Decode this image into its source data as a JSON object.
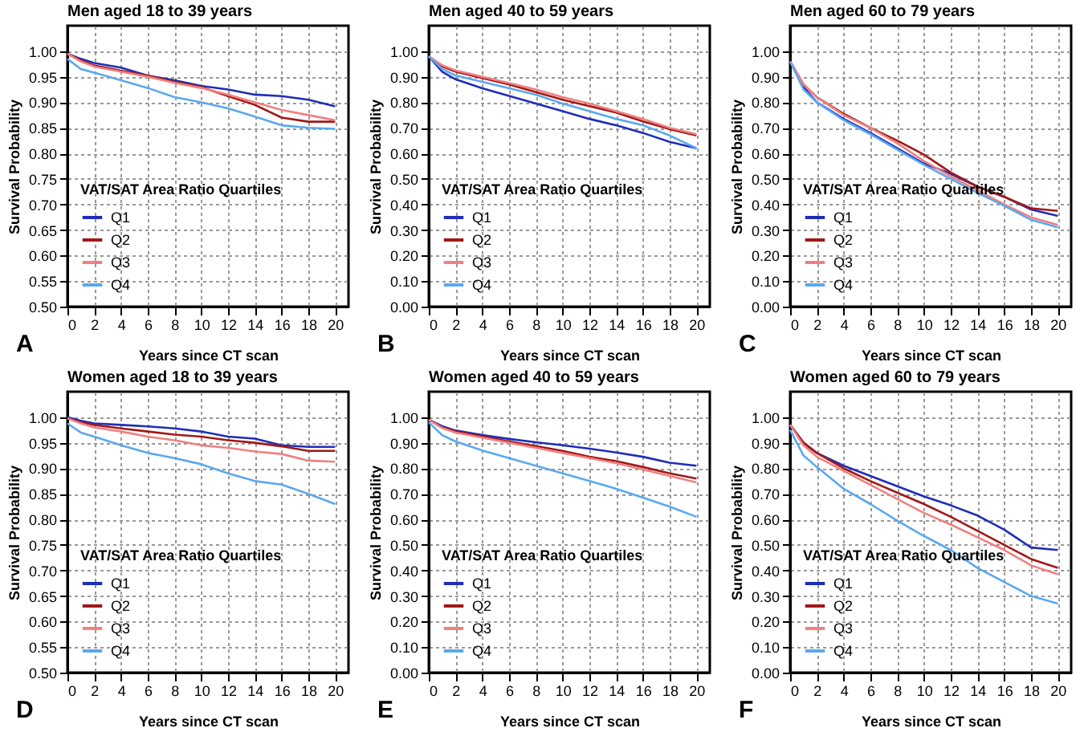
{
  "chart_data": [
    {
      "type": "line",
      "title": "Men aged 18 to 39 years",
      "xlabel": "Years since CT scan",
      "ylabel": "Survival Probability",
      "legend_title": "VAT/SAT Area Ratio Quartiles",
      "legend": "bottom left",
      "grid": true,
      "annotations": [
        "A"
      ],
      "x": [
        0,
        1,
        2,
        4,
        6,
        8,
        10,
        12,
        14,
        16,
        18,
        20
      ],
      "xlim": [
        0,
        21
      ],
      "xticks": [
        0,
        2,
        4,
        6,
        8,
        10,
        12,
        14,
        16,
        18,
        20
      ],
      "ylim": [
        0.5,
        1.05
      ],
      "yticks": [
        {
          "value": 0.5,
          "label": "0.50"
        },
        {
          "value": 0.55,
          "label": "0.55"
        },
        {
          "value": 0.6,
          "label": "0.60"
        },
        {
          "value": 0.65,
          "label": "0.65"
        },
        {
          "value": 0.7,
          "label": "0.70"
        },
        {
          "value": 0.75,
          "label": "0.75"
        },
        {
          "value": 0.8,
          "label": "0.80"
        },
        {
          "value": 0.85,
          "label": "0.85"
        },
        {
          "value": 0.9,
          "label": "0.90"
        },
        {
          "value": 0.95,
          "label": "0.95"
        },
        {
          "value": 1,
          "label": "1.00"
        }
      ],
      "series": [
        {
          "name": "Q1",
          "color": "#1f2db8",
          "values": [
            0.995,
            0.985,
            0.977,
            0.968,
            0.952,
            0.943,
            0.932,
            0.925,
            0.915,
            0.912,
            0.905,
            0.892
          ]
        },
        {
          "name": "Q2",
          "color": "#a01818",
          "values": [
            0.995,
            0.982,
            0.972,
            0.962,
            0.952,
            0.94,
            0.93,
            0.912,
            0.895,
            0.87,
            0.862,
            0.862
          ]
        },
        {
          "name": "Q3",
          "color": "#f08080",
          "values": [
            0.995,
            0.98,
            0.97,
            0.96,
            0.95,
            0.938,
            0.928,
            0.915,
            0.9,
            0.885,
            0.875,
            0.865
          ]
        },
        {
          "name": "Q4",
          "color": "#5aa8f0",
          "values": [
            0.985,
            0.965,
            0.958,
            0.943,
            0.928,
            0.91,
            0.9,
            0.888,
            0.872,
            0.855,
            0.85,
            0.848
          ]
        }
      ]
    },
    {
      "type": "line",
      "title": "Men aged 40 to 59 years",
      "xlabel": "Years since CT scan",
      "ylabel": "Survival Probability",
      "legend_title": "VAT/SAT Area Ratio Quartiles",
      "legend": "bottom left",
      "grid": true,
      "annotations": [
        "B"
      ],
      "x": [
        0,
        1,
        2,
        4,
        6,
        8,
        10,
        12,
        14,
        16,
        18,
        20
      ],
      "xlim": [
        0,
        21
      ],
      "xticks": [
        0,
        2,
        4,
        6,
        8,
        10,
        12,
        14,
        16,
        18,
        20
      ],
      "ylim": [
        0,
        1.1
      ],
      "yticks": [
        {
          "value": 0,
          "label": "0.00"
        },
        {
          "value": 0.1,
          "label": "0.10"
        },
        {
          "value": 0.2,
          "label": "0.20"
        },
        {
          "value": 0.3,
          "label": "0.30"
        },
        {
          "value": 0.4,
          "label": "0.40"
        },
        {
          "value": 0.5,
          "label": "0.50"
        },
        {
          "value": 0.6,
          "label": "0.60"
        },
        {
          "value": 0.7,
          "label": "0.70"
        },
        {
          "value": 0.8,
          "label": "0.80"
        },
        {
          "value": 0.9,
          "label": "0.90"
        },
        {
          "value": 1,
          "label": "1.00"
        }
      ],
      "series": [
        {
          "name": "Q1",
          "color": "#1f2db8",
          "values": [
            0.98,
            0.92,
            0.89,
            0.855,
            0.825,
            0.795,
            0.765,
            0.735,
            0.71,
            0.68,
            0.645,
            0.62
          ]
        },
        {
          "name": "Q2",
          "color": "#a01818",
          "values": [
            0.98,
            0.94,
            0.92,
            0.895,
            0.87,
            0.84,
            0.81,
            0.785,
            0.76,
            0.725,
            0.695,
            0.67
          ]
        },
        {
          "name": "Q3",
          "color": "#f08080",
          "values": [
            0.98,
            0.945,
            0.925,
            0.9,
            0.875,
            0.85,
            0.82,
            0.795,
            0.765,
            0.735,
            0.7,
            0.675
          ]
        },
        {
          "name": "Q4",
          "color": "#5aa8f0",
          "values": [
            0.98,
            0.93,
            0.905,
            0.88,
            0.855,
            0.83,
            0.795,
            0.765,
            0.735,
            0.71,
            0.67,
            0.62
          ]
        }
      ]
    },
    {
      "type": "line",
      "title": "Men aged 60 to 79 years",
      "xlabel": "Years since CT scan",
      "ylabel": "Survival Probability",
      "legend_title": "VAT/SAT Area Ratio Quartiles",
      "legend": "bottom left",
      "grid": true,
      "annotations": [
        "C"
      ],
      "x": [
        0,
        1,
        2,
        4,
        6,
        8,
        10,
        12,
        14,
        16,
        18,
        20
      ],
      "xlim": [
        0,
        21
      ],
      "xticks": [
        0,
        2,
        4,
        6,
        8,
        10,
        12,
        14,
        16,
        18,
        20
      ],
      "ylim": [
        0,
        1.1
      ],
      "yticks": [
        {
          "value": 0,
          "label": "0.00"
        },
        {
          "value": 0.1,
          "label": "0.10"
        },
        {
          "value": 0.2,
          "label": "0.20"
        },
        {
          "value": 0.3,
          "label": "0.30"
        },
        {
          "value": 0.4,
          "label": "0.40"
        },
        {
          "value": 0.5,
          "label": "0.50"
        },
        {
          "value": 0.6,
          "label": "0.60"
        },
        {
          "value": 0.7,
          "label": "0.70"
        },
        {
          "value": 0.8,
          "label": "0.80"
        },
        {
          "value": 0.9,
          "label": "0.90"
        },
        {
          "value": 1,
          "label": "1.00"
        }
      ],
      "series": [
        {
          "name": "Q1",
          "color": "#1f2db8",
          "values": [
            0.96,
            0.86,
            0.8,
            0.735,
            0.68,
            0.62,
            0.56,
            0.52,
            0.47,
            0.43,
            0.38,
            0.355
          ]
        },
        {
          "name": "Q2",
          "color": "#a01818",
          "values": [
            0.96,
            0.87,
            0.82,
            0.755,
            0.7,
            0.65,
            0.595,
            0.525,
            0.47,
            0.43,
            0.385,
            0.375
          ]
        },
        {
          "name": "Q3",
          "color": "#f08080",
          "values": [
            0.96,
            0.87,
            0.82,
            0.75,
            0.7,
            0.64,
            0.57,
            0.51,
            0.455,
            0.4,
            0.35,
            0.32
          ]
        },
        {
          "name": "Q4",
          "color": "#5aa8f0",
          "values": [
            0.96,
            0.85,
            0.8,
            0.73,
            0.675,
            0.615,
            0.555,
            0.5,
            0.445,
            0.395,
            0.34,
            0.31
          ]
        }
      ]
    },
    {
      "type": "line",
      "title": "Women aged 18 to 39 years",
      "xlabel": "Years since CT scan",
      "ylabel": "Survival Probability",
      "legend_title": "VAT/SAT Area Ratio Quartiles",
      "legend": "bottom left",
      "grid": true,
      "annotations": [
        "D"
      ],
      "x": [
        0,
        1,
        2,
        4,
        6,
        8,
        10,
        12,
        14,
        16,
        18,
        20
      ],
      "xlim": [
        0,
        21
      ],
      "xticks": [
        0,
        2,
        4,
        6,
        8,
        10,
        12,
        14,
        16,
        18,
        20
      ],
      "ylim": [
        0.5,
        1.05
      ],
      "yticks": [
        {
          "value": 0.5,
          "label": "0.50"
        },
        {
          "value": 0.55,
          "label": "0.55"
        },
        {
          "value": 0.6,
          "label": "0.60"
        },
        {
          "value": 0.65,
          "label": "0.65"
        },
        {
          "value": 0.7,
          "label": "0.70"
        },
        {
          "value": 0.75,
          "label": "0.75"
        },
        {
          "value": 0.8,
          "label": "0.80"
        },
        {
          "value": 0.85,
          "label": "0.85"
        },
        {
          "value": 0.9,
          "label": "0.90"
        },
        {
          "value": 0.95,
          "label": "0.95"
        },
        {
          "value": 1,
          "label": "1.00"
        }
      ],
      "series": [
        {
          "name": "Q1",
          "color": "#1f2db8",
          "values": [
            1.0,
            0.993,
            0.988,
            0.985,
            0.982,
            0.978,
            0.972,
            0.962,
            0.958,
            0.945,
            0.942,
            0.942
          ]
        },
        {
          "name": "Q2",
          "color": "#a01818",
          "values": [
            0.998,
            0.99,
            0.985,
            0.978,
            0.972,
            0.966,
            0.962,
            0.955,
            0.95,
            0.943,
            0.934,
            0.934
          ]
        },
        {
          "name": "Q3",
          "color": "#f08080",
          "values": [
            0.998,
            0.988,
            0.98,
            0.972,
            0.962,
            0.955,
            0.945,
            0.94,
            0.933,
            0.928,
            0.915,
            0.913
          ]
        },
        {
          "name": "Q4",
          "color": "#5aa8f0",
          "values": [
            0.988,
            0.97,
            0.962,
            0.945,
            0.93,
            0.92,
            0.908,
            0.89,
            0.875,
            0.868,
            0.85,
            0.83
          ]
        }
      ]
    },
    {
      "type": "line",
      "title": "Women aged 40 to 59 years",
      "xlabel": "Years since CT scan",
      "ylabel": "Survival Probability",
      "legend_title": "VAT/SAT Area Ratio Quartiles",
      "legend": "bottom left",
      "grid": true,
      "annotations": [
        "E"
      ],
      "x": [
        0,
        1,
        2,
        4,
        6,
        8,
        10,
        12,
        14,
        16,
        18,
        20
      ],
      "xlim": [
        0,
        21
      ],
      "xticks": [
        0,
        2,
        4,
        6,
        8,
        10,
        12,
        14,
        16,
        18,
        20
      ],
      "ylim": [
        0,
        1.1
      ],
      "yticks": [
        {
          "value": 0,
          "label": "0.00"
        },
        {
          "value": 0.1,
          "label": "0.10"
        },
        {
          "value": 0.2,
          "label": "0.20"
        },
        {
          "value": 0.3,
          "label": "0.30"
        },
        {
          "value": 0.4,
          "label": "0.40"
        },
        {
          "value": 0.5,
          "label": "0.50"
        },
        {
          "value": 0.6,
          "label": "0.60"
        },
        {
          "value": 0.7,
          "label": "0.70"
        },
        {
          "value": 0.8,
          "label": "0.80"
        },
        {
          "value": 0.9,
          "label": "0.90"
        },
        {
          "value": 1,
          "label": "1.00"
        }
      ],
      "series": [
        {
          "name": "Q1",
          "color": "#1f2db8",
          "values": [
            0.99,
            0.965,
            0.948,
            0.93,
            0.915,
            0.902,
            0.89,
            0.877,
            0.862,
            0.845,
            0.822,
            0.81
          ]
        },
        {
          "name": "Q2",
          "color": "#a01818",
          "values": [
            0.99,
            0.96,
            0.945,
            0.925,
            0.905,
            0.887,
            0.868,
            0.845,
            0.828,
            0.805,
            0.78,
            0.76
          ]
        },
        {
          "name": "Q3",
          "color": "#f08080",
          "values": [
            0.99,
            0.958,
            0.94,
            0.92,
            0.9,
            0.88,
            0.86,
            0.84,
            0.82,
            0.795,
            0.77,
            0.745
          ]
        },
        {
          "name": "Q4",
          "color": "#5aa8f0",
          "values": [
            0.98,
            0.93,
            0.905,
            0.87,
            0.84,
            0.81,
            0.78,
            0.75,
            0.72,
            0.685,
            0.65,
            0.61
          ]
        }
      ]
    },
    {
      "type": "line",
      "title": "Women aged 60 to 79 years",
      "xlabel": "Years since CT scan",
      "ylabel": "Survival Probability",
      "legend_title": "VAT/SAT Area Ratio Quartiles",
      "legend": "bottom left",
      "grid": true,
      "annotations": [
        "F"
      ],
      "x": [
        0,
        1,
        2,
        4,
        6,
        8,
        10,
        12,
        14,
        16,
        18,
        20
      ],
      "xlim": [
        0,
        21
      ],
      "xticks": [
        0,
        2,
        4,
        6,
        8,
        10,
        12,
        14,
        16,
        18,
        20
      ],
      "ylim": [
        0,
        1.1
      ],
      "yticks": [
        {
          "value": 0,
          "label": "0.00"
        },
        {
          "value": 0.1,
          "label": "0.10"
        },
        {
          "value": 0.2,
          "label": "0.20"
        },
        {
          "value": 0.3,
          "label": "0.30"
        },
        {
          "value": 0.4,
          "label": "0.40"
        },
        {
          "value": 0.5,
          "label": "0.50"
        },
        {
          "value": 0.6,
          "label": "0.60"
        },
        {
          "value": 0.7,
          "label": "0.70"
        },
        {
          "value": 0.8,
          "label": "0.80"
        },
        {
          "value": 0.9,
          "label": "0.90"
        },
        {
          "value": 1,
          "label": "1.00"
        }
      ],
      "series": [
        {
          "name": "Q1",
          "color": "#1f2db8",
          "values": [
            0.97,
            0.9,
            0.86,
            0.81,
            0.77,
            0.73,
            0.69,
            0.655,
            0.615,
            0.56,
            0.49,
            0.48
          ]
        },
        {
          "name": "Q2",
          "color": "#a01818",
          "values": [
            0.97,
            0.9,
            0.86,
            0.8,
            0.75,
            0.705,
            0.66,
            0.61,
            0.555,
            0.5,
            0.445,
            0.41
          ]
        },
        {
          "name": "Q3",
          "color": "#f08080",
          "values": [
            0.97,
            0.89,
            0.845,
            0.79,
            0.735,
            0.68,
            0.625,
            0.58,
            0.53,
            0.48,
            0.42,
            0.385
          ]
        },
        {
          "name": "Q4",
          "color": "#5aa8f0",
          "values": [
            0.95,
            0.85,
            0.805,
            0.72,
            0.66,
            0.595,
            0.535,
            0.48,
            0.41,
            0.355,
            0.3,
            0.27
          ]
        }
      ]
    }
  ]
}
